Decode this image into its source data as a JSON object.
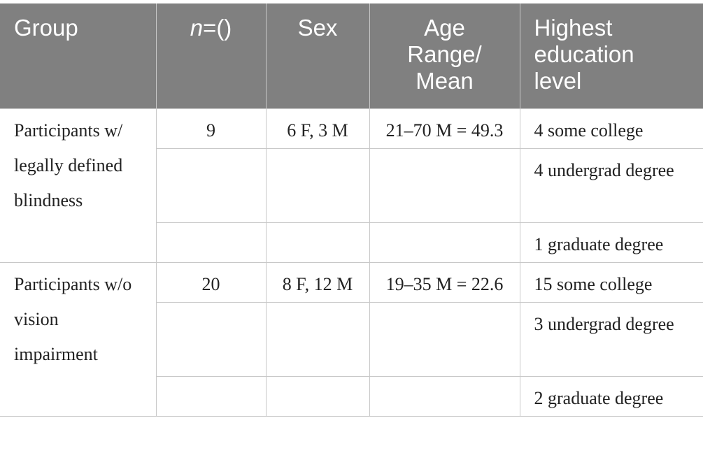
{
  "table": {
    "header": {
      "group": "Group",
      "n_italic": "n",
      "n_rest": "=()",
      "sex": "Sex",
      "age": [
        "Age",
        "Range/",
        "Mean"
      ],
      "education": [
        "Highest",
        "education",
        "level"
      ]
    },
    "groups": [
      {
        "label": "Participants w/ legally defined blindness",
        "n": "9",
        "sex": "6 F, 3 M",
        "age": "21–70 M = 49.3",
        "education": [
          "4 some college",
          "4 undergrad degree",
          "1 graduate degree"
        ]
      },
      {
        "label": "Participants w/o vision impairment",
        "n": "20",
        "sex": "8 F, 12 M",
        "age": "19–35 M = 22.6",
        "education": [
          "15 some college",
          "3 undergrad degree",
          "2 graduate degree"
        ]
      }
    ]
  }
}
